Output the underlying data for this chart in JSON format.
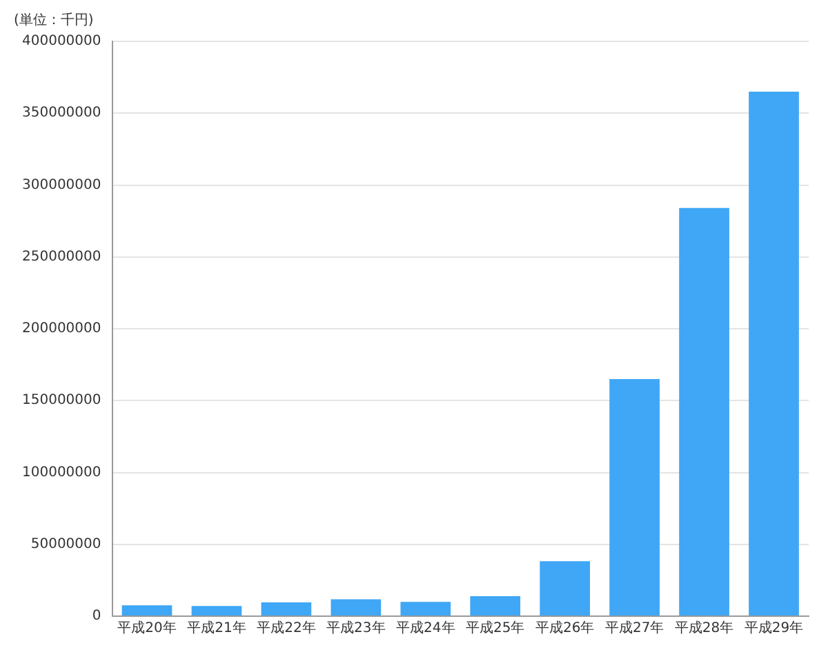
{
  "chart_data": {
    "type": "bar",
    "ylabel": "(単位：千円)",
    "categories": [
      "平成20年",
      "平成21年",
      "平成22年",
      "平成23年",
      "平成24年",
      "平成25年",
      "平成26年",
      "平成27年",
      "平成28年",
      "平成29年"
    ],
    "values": [
      7500000,
      7100000,
      9600000,
      11800000,
      10000000,
      13900000,
      38200000,
      165000000,
      284000000,
      365000000
    ],
    "color": "#3fa7f5",
    "ylim": [
      0,
      400000000
    ],
    "yticks": [
      0,
      50000000,
      100000000,
      150000000,
      200000000,
      250000000,
      300000000,
      350000000,
      400000000
    ],
    "grid": "y"
  }
}
